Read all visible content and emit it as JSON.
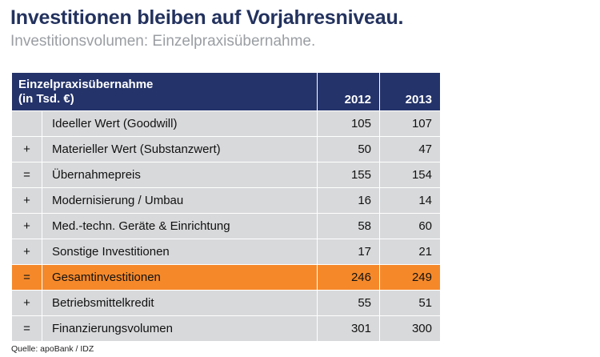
{
  "title": "Investitionen bleiben auf Vorjahresniveau.",
  "subtitle": "Investitionsvolumen: Einzelpraxisübernahme.",
  "table": {
    "header_line1": "Einzelpraxisübernahme",
    "header_line2": "(in Tsd. €)",
    "years": [
      "2012",
      "2013"
    ],
    "rows": [
      {
        "op": "",
        "label": "Ideeller Wert (Goodwill)",
        "v2012": "105",
        "v2013": "107",
        "highlight": false
      },
      {
        "op": "+",
        "label": "Materieller Wert (Substanzwert)",
        "v2012": "50",
        "v2013": "47",
        "highlight": false
      },
      {
        "op": "=",
        "label": "Übernahmepreis",
        "v2012": "155",
        "v2013": "154",
        "highlight": false
      },
      {
        "op": "+",
        "label": "Modernisierung / Umbau",
        "v2012": "16",
        "v2013": "14",
        "highlight": false
      },
      {
        "op": "+",
        "label": "Med.-techn. Geräte & Einrichtung",
        "v2012": "58",
        "v2013": "60",
        "highlight": false
      },
      {
        "op": "+",
        "label": "Sonstige Investitionen",
        "v2012": "17",
        "v2013": "21",
        "highlight": false
      },
      {
        "op": "=",
        "label": "Gesamtinvestitionen",
        "v2012": "246",
        "v2013": "249",
        "highlight": true
      },
      {
        "op": "+",
        "label": "Betriebsmittelkredit",
        "v2012": "55",
        "v2013": "51",
        "highlight": false
      },
      {
        "op": "=",
        "label": "Finanzierungsvolumen",
        "v2012": "301",
        "v2013": "300",
        "highlight": false
      }
    ]
  },
  "source": "Quelle: apoBank / IDZ",
  "colors": {
    "header_bg": "#24336a",
    "row_bg": "#d8d9db",
    "highlight_bg": "#f5892a",
    "title": "#23325e",
    "subtitle": "#9a9ea3"
  }
}
